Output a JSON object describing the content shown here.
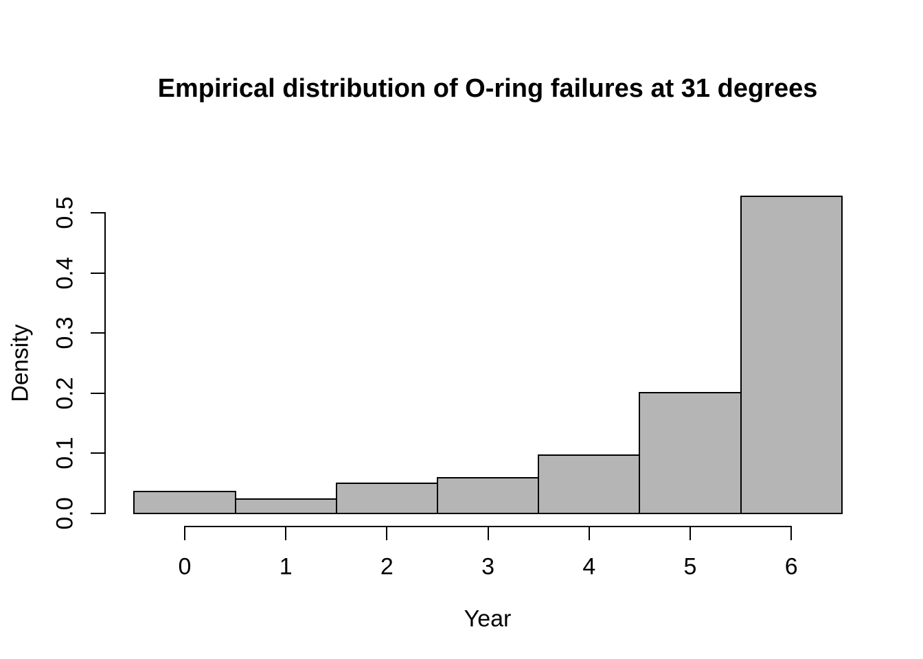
{
  "chart_data": {
    "type": "bar",
    "subtype": "histogram",
    "title": "Empirical distribution of O-ring failures at 31 degrees",
    "xlabel": "Year",
    "ylabel": "Density",
    "categories": [
      0,
      1,
      2,
      3,
      4,
      5,
      6
    ],
    "values": [
      0.037,
      0.024,
      0.05,
      0.059,
      0.097,
      0.201,
      0.527
    ],
    "bar_width": 1,
    "xlim": [
      -0.5,
      6.5
    ],
    "ylim": [
      0,
      0.527
    ],
    "x_ticks": [
      0,
      1,
      2,
      3,
      4,
      5,
      6
    ],
    "x_tick_labels": [
      "0",
      "1",
      "2",
      "3",
      "4",
      "5",
      "6"
    ],
    "y_ticks": [
      0.0,
      0.1,
      0.2,
      0.3,
      0.4,
      0.5
    ],
    "y_tick_labels": [
      "0.0",
      "0.1",
      "0.2",
      "0.3",
      "0.4",
      "0.5"
    ],
    "grid": false,
    "legend": null,
    "colors": {
      "bar_fill": "#b5b5b5",
      "bar_stroke": "#000000",
      "axis": "#000000",
      "text": "#000000",
      "background": "#ffffff"
    }
  }
}
